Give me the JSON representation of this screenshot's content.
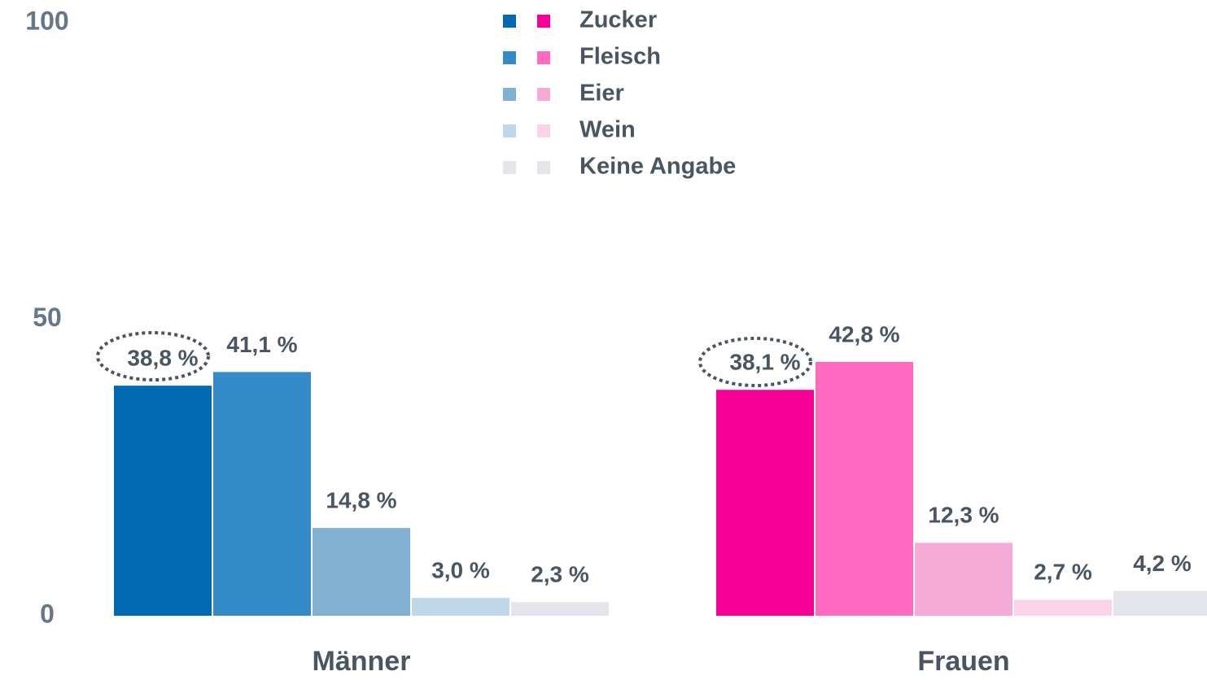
{
  "chart_data": {
    "type": "bar",
    "categories": [
      "Männer",
      "Frauen"
    ],
    "series": [
      {
        "name": "Zucker",
        "colors": [
          "#0069b4",
          "#f70096"
        ],
        "values": [
          38.8,
          38.1
        ],
        "value_labels": [
          "38,8 %",
          "38,1 %"
        ]
      },
      {
        "name": "Fleisch",
        "colors": [
          "#348bc8",
          "#ff69c0"
        ],
        "values": [
          41.1,
          42.8
        ],
        "value_labels": [
          "41,1 %",
          "42,8 %"
        ]
      },
      {
        "name": "Eier",
        "colors": [
          "#80b1d3",
          "#f5abd8"
        ],
        "values": [
          14.8,
          12.3
        ],
        "value_labels": [
          "14,8 %",
          "12,3 %"
        ]
      },
      {
        "name": "Wein",
        "colors": [
          "#bfd7ea",
          "#fbd4ec"
        ],
        "values": [
          3.0,
          2.7
        ],
        "value_labels": [
          "3,0 %",
          "2,7 %"
        ]
      },
      {
        "name": "Keine Angabe",
        "colors": [
          "#e3e5ea",
          "#e3e5ea"
        ],
        "values": [
          2.3,
          4.2
        ],
        "value_labels": [
          "2,3 %",
          "4,2 %"
        ]
      }
    ],
    "ylim": [
      0,
      100
    ],
    "yticks": [
      0,
      50,
      100
    ],
    "grid": false,
    "legend": "top"
  }
}
